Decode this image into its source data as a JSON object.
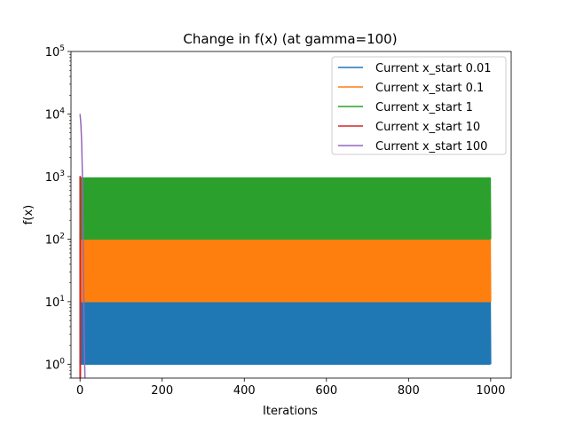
{
  "chart_data": {
    "type": "line",
    "title": "Change in f(x) (at gamma=100)",
    "xlabel": "Iterations",
    "ylabel": "f(x)",
    "xlim": [
      -22,
      1050
    ],
    "ylim": [
      0.6,
      100000
    ],
    "yscale": "log",
    "x_ticks": [
      {
        "value": 0,
        "label": "0"
      },
      {
        "value": 200,
        "label": "200"
      },
      {
        "value": 400,
        "label": "400"
      },
      {
        "value": 600,
        "label": "600"
      },
      {
        "value": 800,
        "label": "800"
      },
      {
        "value": 1000,
        "label": "1000"
      }
    ],
    "y_ticks": [
      {
        "value": 1,
        "base": "10",
        "exp": "0"
      },
      {
        "value": 10,
        "base": "10",
        "exp": "1"
      },
      {
        "value": 100,
        "base": "10",
        "exp": "2"
      },
      {
        "value": 1000,
        "base": "10",
        "exp": "3"
      },
      {
        "value": 10000,
        "base": "10",
        "exp": "4"
      },
      {
        "value": 100000,
        "base": "10",
        "exp": "5"
      }
    ],
    "legend_position": "top-right",
    "series": [
      {
        "name": "Current x_start 0.01",
        "color": "#1f77b4",
        "style": "oscillating-band",
        "x_range": [
          0,
          1000
        ],
        "low": 1.0,
        "high": 10.0
      },
      {
        "name": "Current x_start 0.1",
        "color": "#ff7f0e",
        "style": "oscillating-band",
        "x_range": [
          0,
          1000
        ],
        "low": 10.0,
        "high": 100.0,
        "spike_high": 1000.0
      },
      {
        "name": "Current x_start 1",
        "color": "#2ca02c",
        "style": "oscillating-band",
        "x_range": [
          0,
          1000
        ],
        "low": 100.0,
        "high": 950.0
      },
      {
        "name": "Current x_start 10",
        "color": "#d62728",
        "style": "spike",
        "x_range": [
          0,
          1
        ],
        "low": 0.6,
        "high": 1000.0
      },
      {
        "name": "Current x_start 100",
        "color": "#9467bd",
        "style": "decay",
        "x": [
          0,
          2,
          4,
          6,
          8,
          10,
          12
        ],
        "y": [
          10000,
          7000,
          3500,
          900,
          60,
          3,
          0.6
        ]
      }
    ]
  }
}
